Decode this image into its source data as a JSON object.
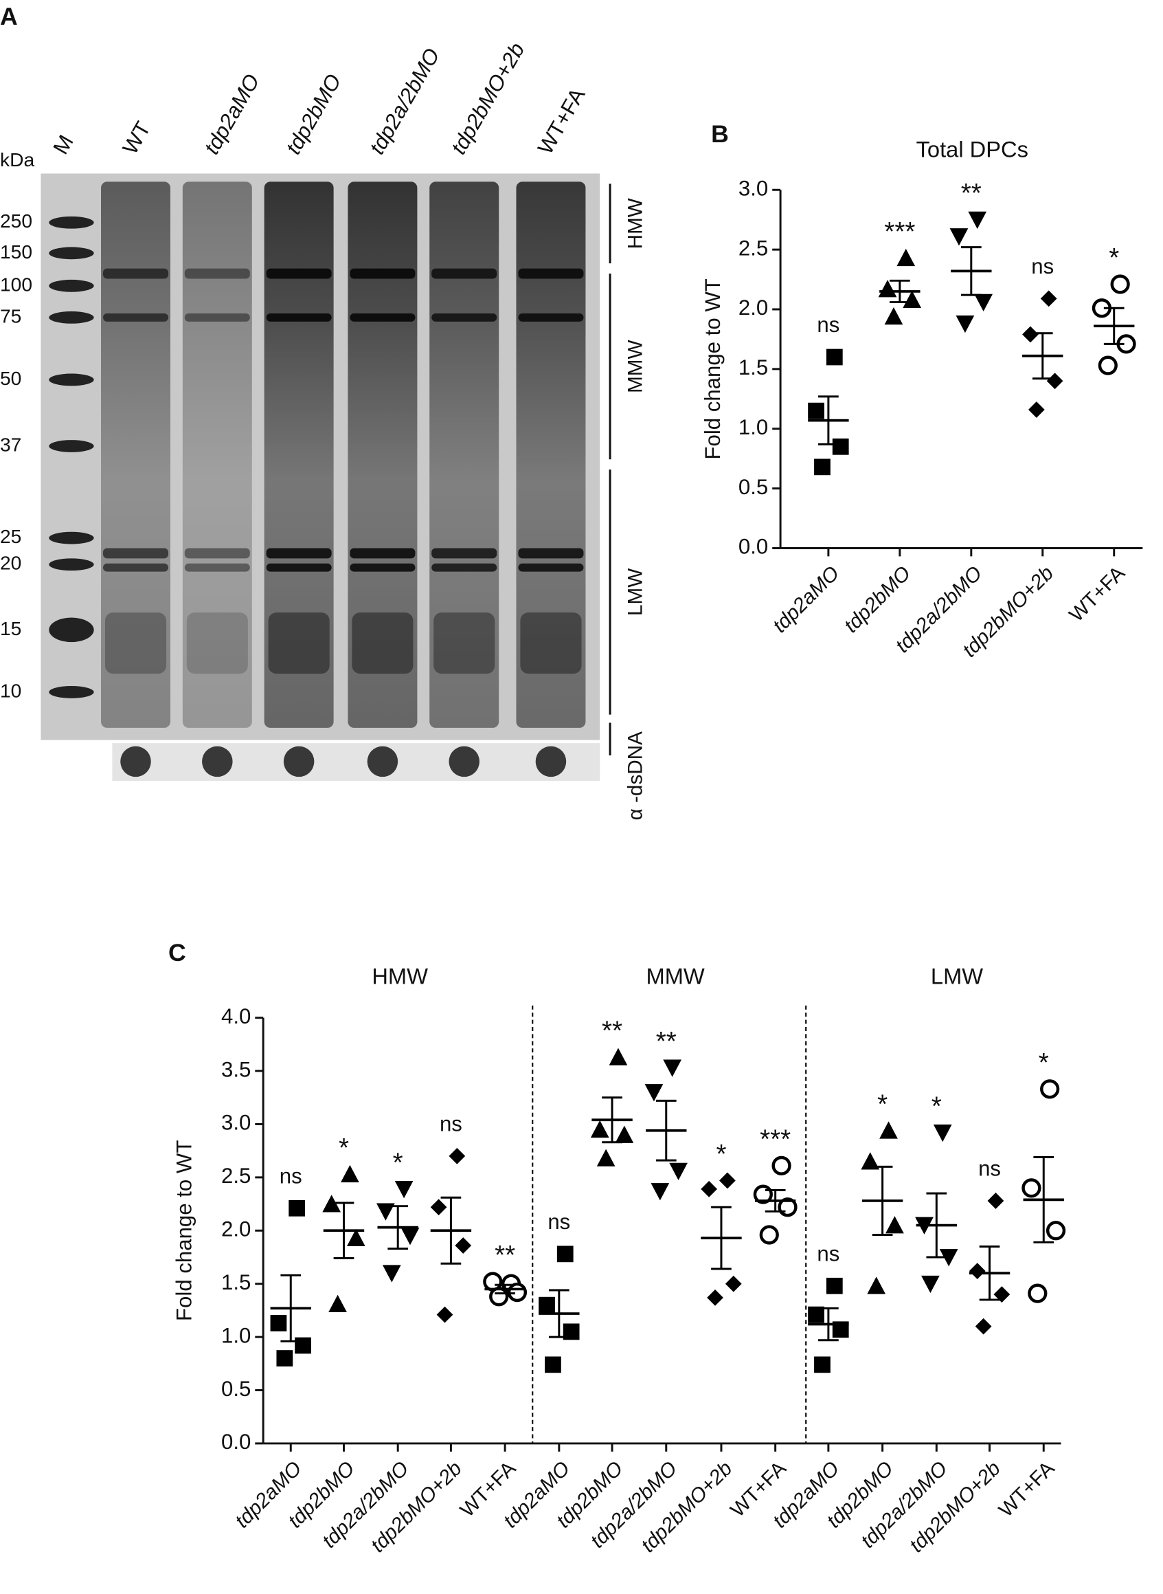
{
  "panel_a": {
    "label": "A",
    "unit": "kDa",
    "lanes": [
      "M",
      "WT",
      "tdp2aMO",
      "tdp2bMO",
      "tdp2a/2bMO",
      "tdp2bMO+2b",
      "WT+FA"
    ],
    "markers": [
      250,
      150,
      100,
      75,
      50,
      37,
      25,
      20,
      15,
      10
    ],
    "regions": [
      "HMW",
      "MMW",
      "LMW"
    ],
    "blot_label": "α -dsDNA"
  },
  "chart_data": [
    {
      "type": "scatter",
      "panel_label": "B",
      "ylabel": "Fold change to WT",
      "ylim": [
        0,
        3
      ],
      "yticks": [
        {
          "value": 0,
          "label": "0.0"
        },
        0.5,
        {
          "value": 1,
          "label": "1.0"
        },
        1.5,
        {
          "value": 2,
          "label": "2.0"
        },
        2.5,
        {
          "value": 3,
          "label": "3.0"
        }
      ],
      "markers": [
        "square",
        "triangle-up",
        "triangle-down",
        "diamond",
        "circle-open"
      ],
      "color": "#000000",
      "panels": [
        {
          "title": "Total DPCs",
          "categories": [
            "tdp2aMO",
            "tdp2bMO",
            "tdp2a/2bMO",
            "tdp2bMO+2b",
            "WT+FA"
          ],
          "points": [
            [
              1.6,
              1.15,
              0.85,
              0.68
            ],
            [
              2.43,
              2.17,
              2.08,
              1.94
            ],
            [
              2.75,
              2.61,
              2.06,
              1.88
            ],
            [
              2.09,
              1.79,
              1.4,
              1.16
            ],
            [
              2.21,
              2.01,
              1.71,
              1.53
            ]
          ],
          "mean": [
            1.07,
            2.15,
            2.32,
            1.61,
            1.86
          ],
          "sem": [
            0.2,
            0.09,
            0.2,
            0.19,
            0.15
          ],
          "significance": [
            "ns",
            "***",
            "**",
            "ns",
            "*"
          ]
        }
      ]
    },
    {
      "type": "scatter",
      "panel_label": "C",
      "ylabel": "Fold change to WT",
      "ylim": [
        0,
        4
      ],
      "yticks": [
        {
          "value": 0,
          "label": "0.0"
        },
        0.5,
        {
          "value": 1,
          "label": "1.0"
        },
        1.5,
        {
          "value": 2,
          "label": "2.0"
        },
        2.5,
        {
          "value": 3,
          "label": "3.0"
        },
        3.5,
        {
          "value": 4,
          "label": "4.0"
        }
      ],
      "markers": [
        "square",
        "triangle-up",
        "triangle-down",
        "diamond",
        "circle-open"
      ],
      "color": "#000000",
      "panels": [
        {
          "title": "HMW",
          "categories": [
            "tdp2aMO",
            "tdp2bMO",
            "tdp2a/2bMO",
            "tdp2bMO+2b",
            "WT+FA"
          ],
          "points": [
            [
              2.21,
              1.13,
              0.92,
              0.8
            ],
            [
              2.53,
              2.25,
              1.93,
              1.31
            ],
            [
              2.39,
              2.18,
              1.95,
              1.6
            ],
            [
              2.7,
              2.22,
              1.86,
              1.21
            ],
            [
              1.5,
              1.52,
              1.42,
              1.38
            ]
          ],
          "mean": [
            1.27,
            2.0,
            2.03,
            2.0,
            1.45
          ],
          "sem": [
            0.31,
            0.26,
            0.2,
            0.31,
            0.04
          ],
          "significance": [
            "ns",
            "*",
            "*",
            "ns",
            "**"
          ]
        },
        {
          "title": "MMW",
          "categories": [
            "tdp2aMO",
            "tdp2bMO",
            "tdp2a/2bMO",
            "tdp2bMO+2b",
            "WT+FA"
          ],
          "points": [
            [
              1.78,
              1.3,
              1.05,
              0.74
            ],
            [
              3.63,
              2.95,
              2.9,
              2.68
            ],
            [
              3.53,
              3.3,
              2.56,
              2.37
            ],
            [
              2.47,
              2.39,
              1.5,
              1.37
            ],
            [
              2.61,
              2.34,
              2.22,
              1.96
            ]
          ],
          "mean": [
            1.22,
            3.04,
            2.94,
            1.93,
            2.28
          ],
          "sem": [
            0.22,
            0.21,
            0.28,
            0.29,
            0.1
          ],
          "significance": [
            "ns",
            "**",
            "**",
            "*",
            "***"
          ]
        },
        {
          "title": "LMW",
          "categories": [
            "tdp2aMO",
            "tdp2bMO",
            "tdp2a/2bMO",
            "tdp2bMO+2b",
            "WT+FA"
          ],
          "points": [
            [
              1.48,
              1.21,
              1.07,
              0.74
            ],
            [
              2.94,
              2.65,
              2.05,
              1.48
            ],
            [
              2.92,
              2.05,
              1.75,
              1.5
            ],
            [
              2.28,
              1.62,
              1.4,
              1.1
            ],
            [
              3.33,
              2.4,
              2.0,
              1.41
            ]
          ],
          "mean": [
            1.12,
            2.28,
            2.05,
            1.6,
            2.29
          ],
          "sem": [
            0.15,
            0.32,
            0.3,
            0.25,
            0.4
          ],
          "significance": [
            "ns",
            "*",
            "*",
            "ns",
            "*"
          ]
        }
      ]
    }
  ]
}
